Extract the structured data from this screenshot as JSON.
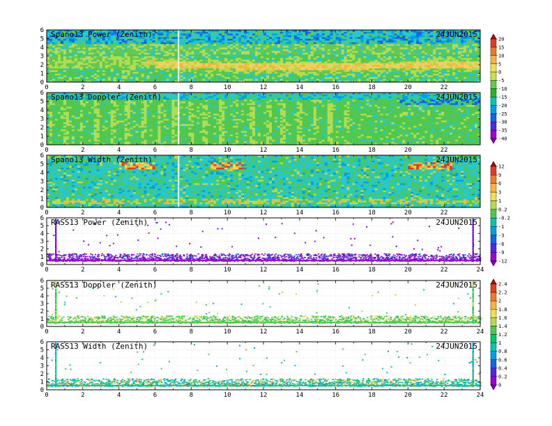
{
  "chart_data": [
    {
      "type": "heatmap",
      "title": "Spano13 Power (Zenith)",
      "date": "24JUN2015",
      "xlim": [
        0,
        24
      ],
      "ylim": [
        0,
        6
      ],
      "x_ticks": [
        "0",
        "2",
        "4",
        "6",
        "8",
        "10",
        "12",
        "14",
        "16",
        "18",
        "20",
        "22"
      ],
      "y_ticks": [
        "0",
        "1",
        "2",
        "3",
        "4",
        "5",
        "6"
      ],
      "colorbar": "power",
      "description": "Broad green/cyan field (-20 to -10 dB) with a bright yellow-orange layer near 1.5-2.5 km rising after hour 6; speckled blue (-30 dB) above 4 km; white data gap near hour 7.3."
    },
    {
      "type": "heatmap",
      "title": "Spano13 Doppler (Zenith)",
      "date": "24JUN2015",
      "xlim": [
        0,
        24
      ],
      "ylim": [
        0,
        6
      ],
      "x_ticks": [
        "0",
        "2",
        "4",
        "6",
        "8",
        "10",
        "12",
        "14",
        "16",
        "18",
        "20",
        "22"
      ],
      "y_ticks": [
        "0",
        "1",
        "2",
        "3",
        "4",
        "5",
        "6"
      ],
      "colorbar": "power",
      "description": "Mostly green with light-green vertical streaks, cyan/blue near top; white gap near hour 7.3."
    },
    {
      "type": "heatmap",
      "title": "Spano13 Width (Zenith)",
      "date": "24JUN2015",
      "xlim": [
        0,
        24
      ],
      "ylim": [
        0,
        6
      ],
      "x_ticks": [
        "0",
        "2",
        "4",
        "6",
        "8",
        "10",
        "12",
        "14",
        "16",
        "18",
        "20",
        "22"
      ],
      "y_ticks": [
        "0",
        "1",
        "2",
        "3",
        "4",
        "5",
        "6"
      ],
      "colorbar": "width",
      "description": "Cyan/green field with yellow-orange-red patches near 4.5-5 km around hours 4-6, 9-11 and 20-22, and along 0.5-1 km."
    },
    {
      "type": "scatter",
      "title": "RASS13 Power (Zenith)",
      "date": "24JUN2015",
      "xlim": [
        0,
        24
      ],
      "ylim": [
        0,
        6
      ],
      "x_ticks": [
        "0",
        "2",
        "4",
        "6",
        "8",
        "10",
        "12",
        "14",
        "16",
        "18",
        "20",
        "22",
        "24"
      ],
      "y_ticks": [
        "0",
        "1",
        "2",
        "3",
        "4",
        "5",
        "6"
      ],
      "colorbar": "width",
      "description": "Dense purple/blue points between 0.6 and 1.4 km, sparse purple points above; vertical columns at hours 0.5 and 23.6."
    },
    {
      "type": "scatter",
      "title": "RASS13 Doppler (Zenith)",
      "date": "24JUN2015",
      "xlim": [
        0,
        24
      ],
      "ylim": [
        0,
        6
      ],
      "x_ticks": [
        "0",
        "2",
        "4",
        "6",
        "8",
        "10",
        "12",
        "14",
        "16",
        "18",
        "20",
        "22",
        "24"
      ],
      "y_ticks": [
        "0",
        "1",
        "2",
        "3",
        "4",
        "5",
        "6"
      ],
      "colorbar": "doppler",
      "description": "Dense green/yellow points between 0.5 and 1.4 km, sparse green above; vertical columns at hours 0.5 and 23.6."
    },
    {
      "type": "scatter",
      "title": "RASS13 Width (Zenith)",
      "date": "24JUN2015",
      "xlim": [
        0,
        24
      ],
      "ylim": [
        0,
        6
      ],
      "x_ticks": [
        "0",
        "2",
        "4",
        "6",
        "8",
        "10",
        "12",
        "14",
        "16",
        "18",
        "20",
        "22",
        "24"
      ],
      "y_ticks": [
        "0",
        "1",
        "2",
        "3",
        "4",
        "5",
        "6"
      ],
      "colorbar": "doppler",
      "description": "Dense cyan/green points between 0.4 and 1.4 km with orange/red specks near 0.5 km, sparse cyan above; vertical columns at hours 0.5 and 23.6."
    }
  ],
  "colorbars": {
    "power": {
      "labels": [
        "20",
        "15",
        "10",
        "5",
        "0",
        "-5",
        "-10",
        "-15",
        "-20",
        "-25",
        "-30",
        "-35",
        "-40"
      ],
      "colors": [
        "#c80000",
        "#e03c1e",
        "#f07828",
        "#f8b438",
        "#f0e050",
        "#c8e050",
        "#64c850",
        "#28b428",
        "#00c8b4",
        "#00a0e6",
        "#1464e6",
        "#5028e6",
        "#a000d2",
        "#8c00c8"
      ]
    },
    "width": {
      "labels": [
        "12",
        "9",
        "6",
        "3",
        "1",
        "0.2",
        "-0.2",
        "-1",
        "-3",
        "-6",
        "-9",
        "-12"
      ],
      "colors": [
        "#c80000",
        "#e03c1e",
        "#f07828",
        "#f8b438",
        "#f0e050",
        "#b4dc50",
        "#50c850",
        "#00c8b4",
        "#00a0e6",
        "#1464e6",
        "#5028e6",
        "#a000d2",
        "#8c00c8"
      ]
    },
    "doppler": {
      "labels": [
        "2.4",
        "2.2",
        "2",
        "1.8",
        "1.6",
        "1.4",
        "1.2",
        "1",
        "0.8",
        "0.6",
        "0.4",
        "0.2",
        "0"
      ],
      "colors": [
        "#c80000",
        "#e03c1e",
        "#f07828",
        "#f8b438",
        "#f0e050",
        "#b4dc50",
        "#50c850",
        "#00c864",
        "#00c8b4",
        "#00a0e6",
        "#1464e6",
        "#5028e6",
        "#a000d2",
        "#8c00c8"
      ]
    }
  }
}
